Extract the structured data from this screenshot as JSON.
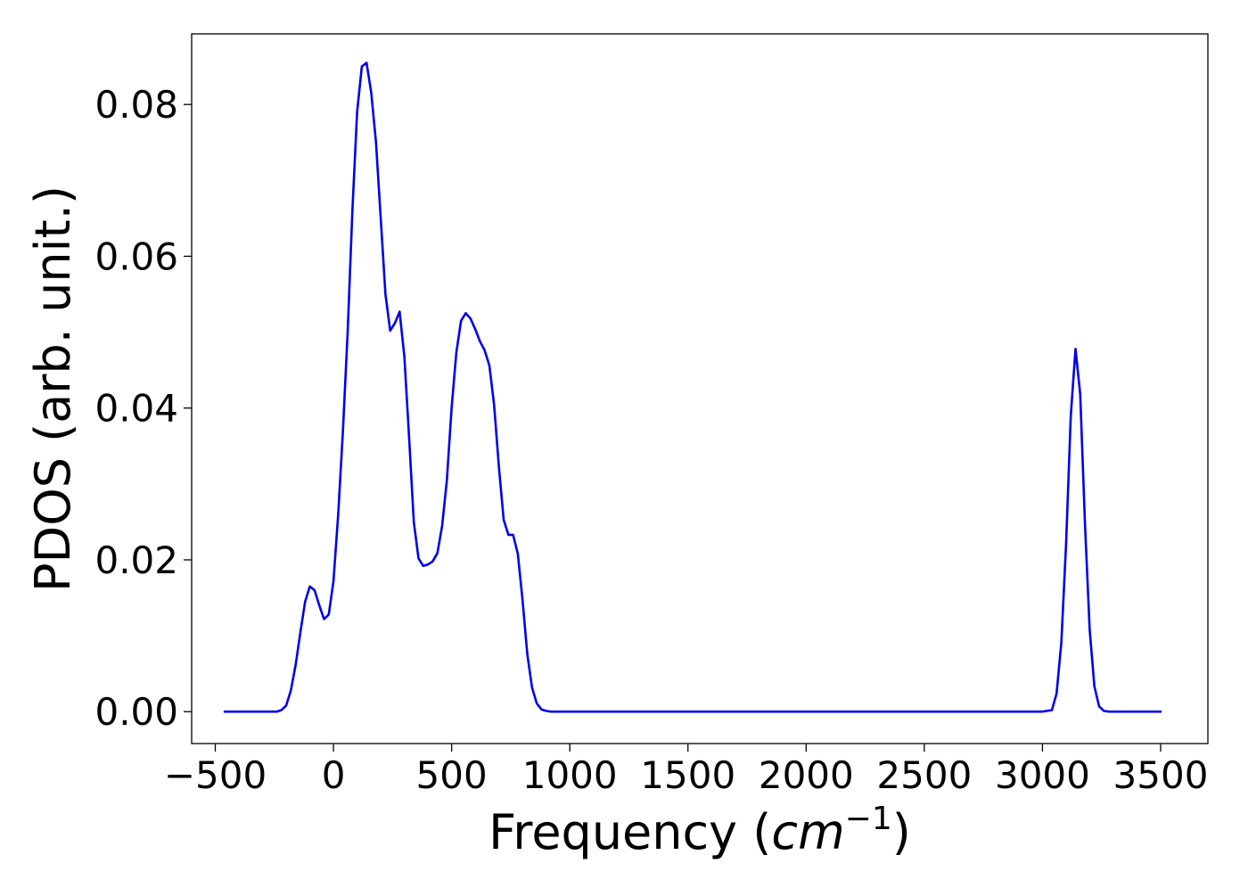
{
  "chart_data": {
    "type": "line",
    "title": "",
    "xlabel": "Frequency",
    "xlabel_unit_base": "cm",
    "xlabel_unit_exp": "−1",
    "ylabel": "PDOS (arb. unit.)",
    "xlim": [
      -600,
      3700
    ],
    "ylim": [
      -0.0042,
      0.0893
    ],
    "xticks": [
      -500,
      0,
      500,
      1000,
      1500,
      2000,
      2500,
      3000,
      3500
    ],
    "xtick_labels": [
      "−500",
      "0",
      "500",
      "1000",
      "1500",
      "2000",
      "2500",
      "3000",
      "3500"
    ],
    "yticks": [
      0.0,
      0.02,
      0.04,
      0.06,
      0.08
    ],
    "ytick_labels": [
      "0.00",
      "0.02",
      "0.04",
      "0.06",
      "0.08"
    ],
    "grid": false,
    "legend": "none",
    "series": [
      {
        "color": "#0000ee",
        "x": [
          -460,
          -400,
          -340,
          -280,
          -240,
          -220,
          -200,
          -180,
          -160,
          -140,
          -120,
          -100,
          -80,
          -60,
          -40,
          -20,
          0,
          20,
          40,
          60,
          80,
          100,
          120,
          140,
          160,
          180,
          200,
          220,
          240,
          260,
          280,
          300,
          320,
          340,
          360,
          380,
          400,
          420,
          440,
          460,
          480,
          500,
          520,
          540,
          560,
          580,
          600,
          620,
          640,
          660,
          680,
          700,
          720,
          740,
          760,
          780,
          800,
          820,
          840,
          860,
          880,
          900,
          920,
          940,
          960,
          1000,
          1500,
          2000,
          2500,
          3000,
          3040,
          3060,
          3080,
          3100,
          3120,
          3140,
          3160,
          3180,
          3200,
          3220,
          3240,
          3260,
          3280,
          3300,
          3350,
          3400,
          3450,
          3500
        ],
        "y": [
          0.0,
          0.0,
          0.0,
          0.0,
          0.0,
          0.0002,
          0.0008,
          0.0028,
          0.0062,
          0.0105,
          0.0145,
          0.0165,
          0.016,
          0.014,
          0.0122,
          0.0128,
          0.0172,
          0.026,
          0.037,
          0.05,
          0.066,
          0.079,
          0.085,
          0.0855,
          0.0815,
          0.075,
          0.065,
          0.055,
          0.0502,
          0.0512,
          0.0527,
          0.0468,
          0.0362,
          0.025,
          0.0202,
          0.0192,
          0.0194,
          0.0198,
          0.0209,
          0.0245,
          0.0305,
          0.04,
          0.0473,
          0.0515,
          0.0525,
          0.0518,
          0.0504,
          0.0488,
          0.0476,
          0.0456,
          0.0404,
          0.0322,
          0.0253,
          0.0233,
          0.0233,
          0.0208,
          0.0147,
          0.0076,
          0.0032,
          0.0011,
          0.0003,
          0.0001,
          0.0,
          0.0,
          0.0,
          0.0,
          0.0,
          0.0,
          0.0,
          0.0,
          0.0002,
          0.0024,
          0.0091,
          0.022,
          0.039,
          0.0478,
          0.0418,
          0.0248,
          0.0108,
          0.0033,
          0.0007,
          0.0001,
          0.0,
          0.0,
          0.0,
          0.0,
          0.0,
          0.0
        ]
      }
    ]
  }
}
